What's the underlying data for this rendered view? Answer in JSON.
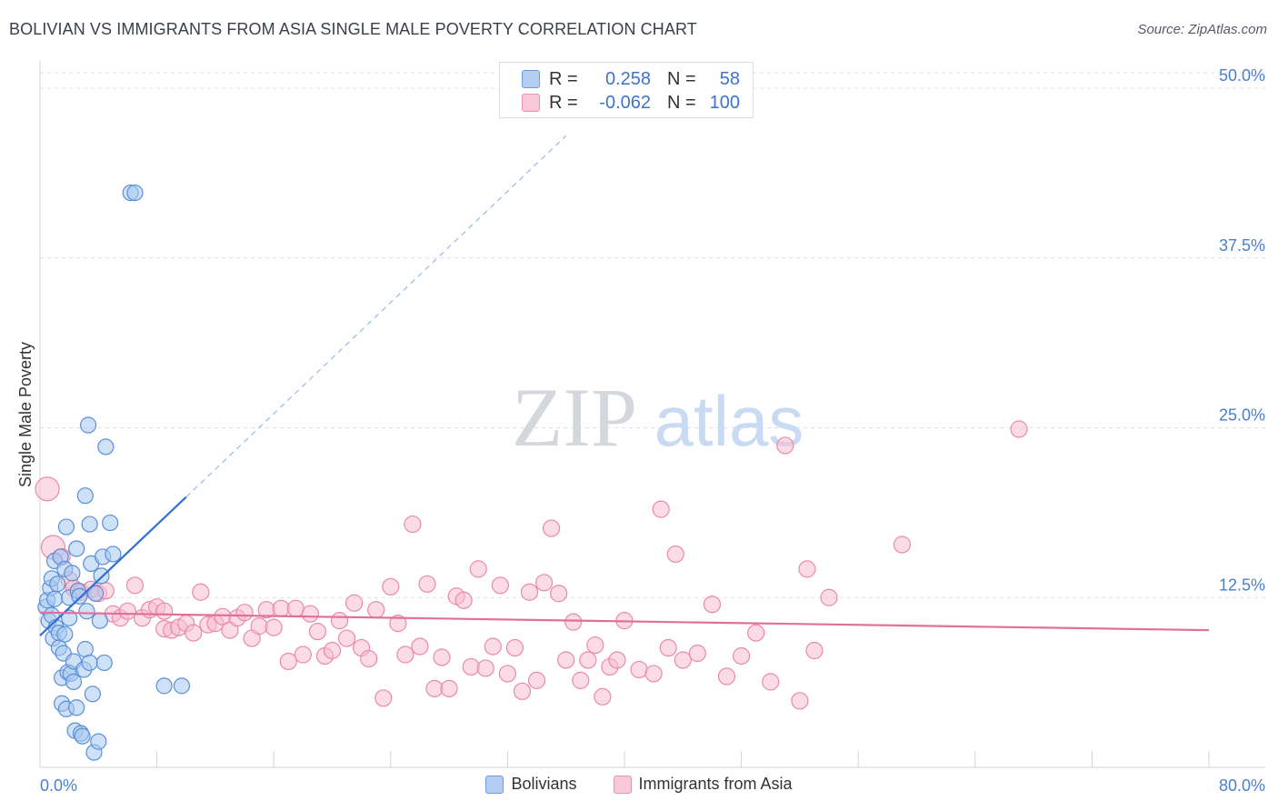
{
  "title": "BOLIVIAN VS IMMIGRANTS FROM ASIA SINGLE MALE POVERTY CORRELATION CHART",
  "source": "Source: ZipAtlas.com",
  "watermark": {
    "zip": "ZIP",
    "atlas": "atlas"
  },
  "colors": {
    "blue_fill": "#a8c8f0",
    "blue_stroke": "#5b8fd6",
    "blue_line": "#2f6fd6",
    "pink_fill": "#f7bdd0",
    "pink_stroke": "#e98aaa",
    "pink_line": "#e0709a",
    "axis_text": "#4a7fd0",
    "grid": "#dde1e8"
  },
  "stats_legend": {
    "r_label": "R =",
    "n_label": "N =",
    "rows": [
      {
        "series": "Bolivians",
        "r": "0.258",
        "n": "58"
      },
      {
        "series": "Immigrants from Asia",
        "r": "-0.062",
        "n": "100"
      }
    ]
  },
  "chart_data": {
    "type": "scatter",
    "title": "BOLIVIAN VS IMMIGRANTS FROM ASIA SINGLE MALE POVERTY CORRELATION CHART",
    "xlabel": "",
    "ylabel": "Single Male Poverty",
    "xlim": [
      0,
      80
    ],
    "ylim": [
      0,
      50
    ],
    "x_tick_labels": [
      "0.0%",
      "80.0%"
    ],
    "y_ticks": [
      12.5,
      25.0,
      37.5,
      50.0
    ],
    "y_tick_labels": [
      "12.5%",
      "25.0%",
      "37.5%",
      "50.0%"
    ],
    "grid": true,
    "legend": "bottom-center",
    "series": [
      {
        "name": "Bolivians",
        "trend": {
          "x": [
            0,
            10
          ],
          "y": [
            9.7,
            19.9
          ],
          "extrapolate_to": [
            36,
            46.5
          ]
        },
        "points": [
          [
            0.4,
            11.8
          ],
          [
            0.5,
            12.3
          ],
          [
            0.6,
            10.8
          ],
          [
            0.7,
            13.2
          ],
          [
            0.8,
            13.9
          ],
          [
            0.8,
            11.2
          ],
          [
            0.9,
            9.5
          ],
          [
            1.0,
            12.4
          ],
          [
            1.0,
            15.2
          ],
          [
            1.1,
            10.3
          ],
          [
            1.2,
            13.5
          ],
          [
            1.3,
            9.9
          ],
          [
            1.3,
            8.8
          ],
          [
            1.4,
            15.5
          ],
          [
            1.5,
            6.6
          ],
          [
            1.5,
            4.7
          ],
          [
            1.6,
            8.4
          ],
          [
            1.7,
            14.6
          ],
          [
            1.7,
            9.8
          ],
          [
            1.8,
            4.3
          ],
          [
            1.8,
            17.7
          ],
          [
            1.9,
            7.0
          ],
          [
            2.0,
            12.5
          ],
          [
            2.0,
            11.0
          ],
          [
            2.1,
            6.9
          ],
          [
            2.2,
            14.3
          ],
          [
            2.3,
            7.8
          ],
          [
            2.3,
            6.3
          ],
          [
            2.4,
            2.7
          ],
          [
            2.5,
            16.1
          ],
          [
            2.5,
            4.4
          ],
          [
            2.6,
            13.0
          ],
          [
            2.7,
            12.6
          ],
          [
            2.8,
            2.5
          ],
          [
            2.9,
            2.3
          ],
          [
            3.0,
            7.2
          ],
          [
            3.1,
            20.0
          ],
          [
            3.1,
            8.7
          ],
          [
            3.2,
            11.5
          ],
          [
            3.3,
            25.2
          ],
          [
            3.4,
            17.9
          ],
          [
            3.4,
            7.7
          ],
          [
            3.5,
            15.0
          ],
          [
            3.6,
            5.4
          ],
          [
            3.7,
            1.1
          ],
          [
            3.8,
            12.8
          ],
          [
            4.0,
            1.9
          ],
          [
            4.1,
            10.8
          ],
          [
            4.2,
            14.1
          ],
          [
            4.3,
            15.5
          ],
          [
            4.4,
            7.7
          ],
          [
            4.5,
            23.6
          ],
          [
            4.8,
            18.0
          ],
          [
            5.0,
            15.7
          ],
          [
            6.2,
            42.3
          ],
          [
            6.5,
            42.3
          ],
          [
            8.5,
            6.0
          ],
          [
            9.7,
            6.0
          ]
        ]
      },
      {
        "name": "Immigrants from Asia",
        "trend": {
          "x": [
            0,
            80
          ],
          "y": [
            11.4,
            10.1
          ]
        },
        "points": [
          [
            0.5,
            20.5
          ],
          [
            0.9,
            16.2
          ],
          [
            1.5,
            15.5
          ],
          [
            2.0,
            13.8
          ],
          [
            2.3,
            13.2
          ],
          [
            2.8,
            12.9
          ],
          [
            3.5,
            13.1
          ],
          [
            4.0,
            12.8
          ],
          [
            4.5,
            13.0
          ],
          [
            5.0,
            11.3
          ],
          [
            5.5,
            11.0
          ],
          [
            6.0,
            11.5
          ],
          [
            6.5,
            13.4
          ],
          [
            7.0,
            11.0
          ],
          [
            7.5,
            11.6
          ],
          [
            8.0,
            11.8
          ],
          [
            8.5,
            11.5
          ],
          [
            8.5,
            10.2
          ],
          [
            9.0,
            10.1
          ],
          [
            9.5,
            10.3
          ],
          [
            10.0,
            10.6
          ],
          [
            10.5,
            9.9
          ],
          [
            11.0,
            12.9
          ],
          [
            11.5,
            10.5
          ],
          [
            12.0,
            10.6
          ],
          [
            12.5,
            11.1
          ],
          [
            13.0,
            10.1
          ],
          [
            13.5,
            11.0
          ],
          [
            14.0,
            11.4
          ],
          [
            14.5,
            9.5
          ],
          [
            15.0,
            10.4
          ],
          [
            15.5,
            11.6
          ],
          [
            16.0,
            10.3
          ],
          [
            16.5,
            11.7
          ],
          [
            17.0,
            7.8
          ],
          [
            17.5,
            11.7
          ],
          [
            18.0,
            8.3
          ],
          [
            18.5,
            11.3
          ],
          [
            19.0,
            10.0
          ],
          [
            19.5,
            8.2
          ],
          [
            20.0,
            8.6
          ],
          [
            20.5,
            10.8
          ],
          [
            21.0,
            9.5
          ],
          [
            21.5,
            12.1
          ],
          [
            22.0,
            8.8
          ],
          [
            22.5,
            8.0
          ],
          [
            23.0,
            11.6
          ],
          [
            23.5,
            5.1
          ],
          [
            24.0,
            13.3
          ],
          [
            24.5,
            10.6
          ],
          [
            25.0,
            8.3
          ],
          [
            25.5,
            17.9
          ],
          [
            26.0,
            8.9
          ],
          [
            26.5,
            13.5
          ],
          [
            27.0,
            5.8
          ],
          [
            27.5,
            8.1
          ],
          [
            28.0,
            5.8
          ],
          [
            28.5,
            12.6
          ],
          [
            29.0,
            12.3
          ],
          [
            29.5,
            7.4
          ],
          [
            30.0,
            14.6
          ],
          [
            30.5,
            7.3
          ],
          [
            31.0,
            8.9
          ],
          [
            31.5,
            13.4
          ],
          [
            32.0,
            6.9
          ],
          [
            32.5,
            8.8
          ],
          [
            33.0,
            5.6
          ],
          [
            33.5,
            12.9
          ],
          [
            34.0,
            6.4
          ],
          [
            34.5,
            13.6
          ],
          [
            35.0,
            17.6
          ],
          [
            35.5,
            12.8
          ],
          [
            36.0,
            7.9
          ],
          [
            36.5,
            10.7
          ],
          [
            37.0,
            6.4
          ],
          [
            37.5,
            7.9
          ],
          [
            38.0,
            9.0
          ],
          [
            38.5,
            5.2
          ],
          [
            39.0,
            7.4
          ],
          [
            39.5,
            7.9
          ],
          [
            40.0,
            10.8
          ],
          [
            41.0,
            7.2
          ],
          [
            42.0,
            6.9
          ],
          [
            42.5,
            19.0
          ],
          [
            43.0,
            8.8
          ],
          [
            43.5,
            15.7
          ],
          [
            44.0,
            7.9
          ],
          [
            45.0,
            8.4
          ],
          [
            46.0,
            12.0
          ],
          [
            47.0,
            6.7
          ],
          [
            48.0,
            8.2
          ],
          [
            49.0,
            9.9
          ],
          [
            50.0,
            6.3
          ],
          [
            51.0,
            23.7
          ],
          [
            52.0,
            4.9
          ],
          [
            52.5,
            14.6
          ],
          [
            53.0,
            8.6
          ],
          [
            54.0,
            12.5
          ],
          [
            59.0,
            16.4
          ],
          [
            67.0,
            24.9
          ]
        ]
      }
    ]
  },
  "bottom_legend": [
    "Bolivians",
    "Immigrants from Asia"
  ]
}
